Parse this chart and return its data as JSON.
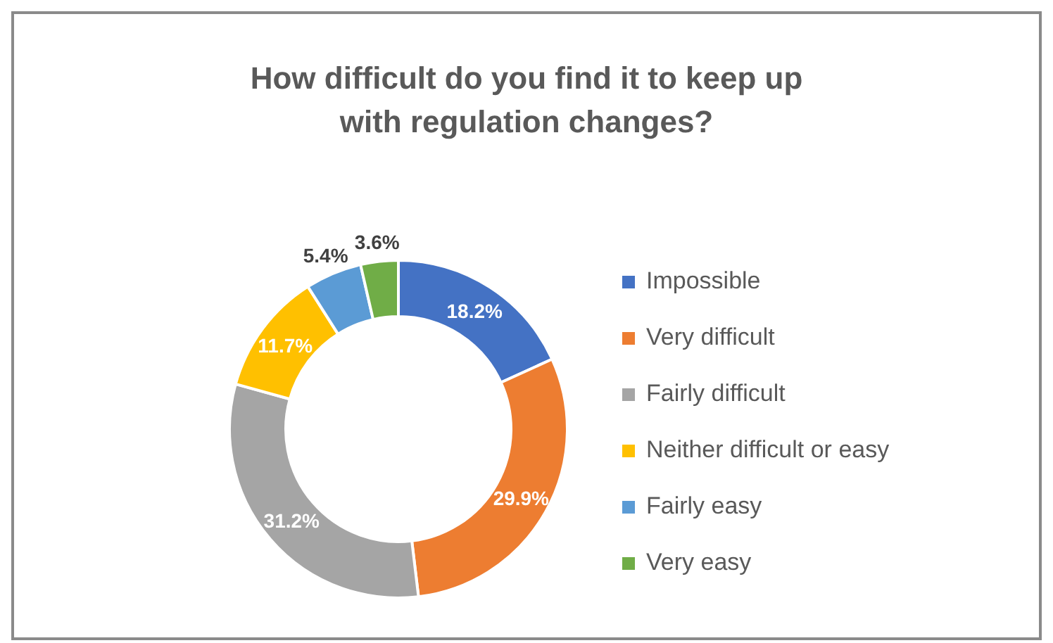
{
  "chart_data": {
    "type": "donut",
    "title": "How difficult do you find it to keep up with regulation changes?",
    "categories": [
      "Impossible",
      "Very difficult",
      "Fairly difficult",
      "Neither difficult or easy",
      "Fairly easy",
      "Very easy"
    ],
    "values": [
      18.2,
      29.9,
      31.2,
      11.7,
      5.4,
      3.6
    ],
    "value_labels": [
      "18.2%",
      "29.9%",
      "31.2%",
      "11.7%",
      "5.4%",
      "3.6%"
    ],
    "colors": [
      "#4472c4",
      "#ed7d31",
      "#a5a5a5",
      "#ffc000",
      "#5b9bd5",
      "#70ad47"
    ],
    "legend": "right"
  }
}
